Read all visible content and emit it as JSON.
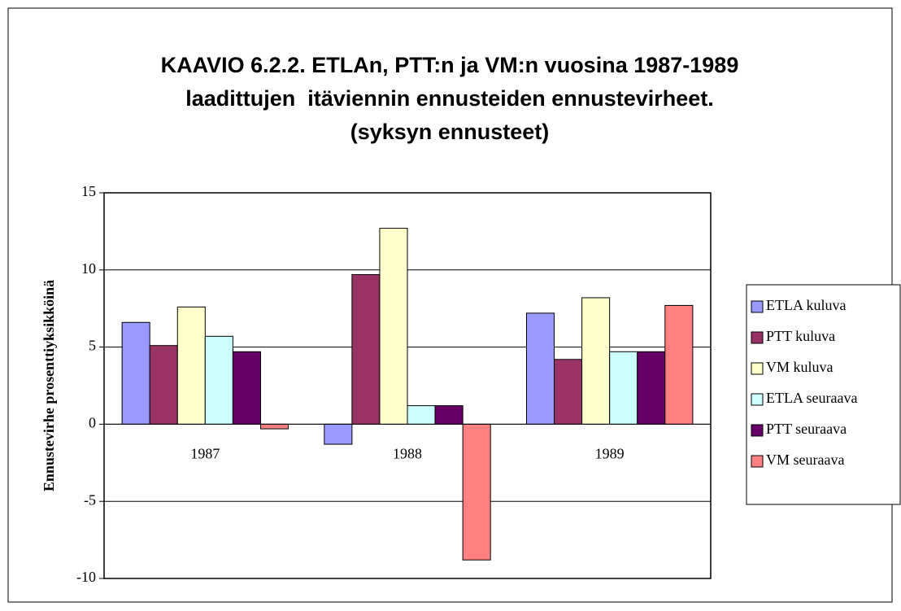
{
  "chart_data": {
    "type": "bar",
    "title": [
      "KAAVIO 6.2.2. ETLAn, PTT:n ja VM:n vuosina 1987-1989",
      "laadittujen  itäviennin ennusteiden ennustevirheet.",
      "(syksyn ennusteet)"
    ],
    "y_label": "Ennustevirhe prosenttiyksikköinä",
    "categories": [
      "1987",
      "1988",
      "1989"
    ],
    "series": [
      {
        "name": "ETLA kuluva",
        "color": "#9999ff",
        "values": [
          6.6,
          -1.3,
          7.2
        ]
      },
      {
        "name": "PTT kuluva",
        "color": "#993366",
        "values": [
          5.1,
          9.7,
          4.2
        ]
      },
      {
        "name": "VM kuluva",
        "color": "#ffffcc",
        "values": [
          7.6,
          12.7,
          8.2
        ]
      },
      {
        "name": "ETLA seuraava",
        "color": "#ccffff",
        "values": [
          5.7,
          1.2,
          4.7
        ]
      },
      {
        "name": "PTT seuraava",
        "color": "#660066",
        "values": [
          4.7,
          1.2,
          4.7
        ]
      },
      {
        "name": "VM seuraava",
        "color": "#ff8080",
        "values": [
          -0.3,
          -8.8,
          7.7
        ]
      }
    ],
    "ylim": [
      -10,
      15
    ],
    "yticks": [
      -10,
      -5,
      0,
      5,
      10,
      15
    ],
    "grid": true,
    "legend": "right"
  }
}
